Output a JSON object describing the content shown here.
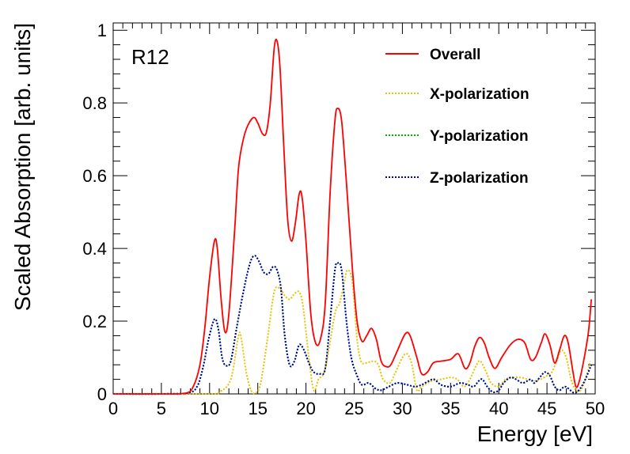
{
  "chart_data": {
    "type": "line",
    "annotation": "R12",
    "xlabel": "Energy [eV]",
    "ylabel": "Scaled Absorption [arb. units]",
    "xlim": [
      0,
      50
    ],
    "ylim": [
      0,
      1.02
    ],
    "xticks": [
      0,
      5,
      10,
      15,
      20,
      25,
      30,
      35,
      40,
      45,
      50
    ],
    "yticks": [
      0,
      0.2,
      0.4,
      0.6,
      0.8,
      1
    ],
    "ytick_labels": [
      "0",
      "0.2",
      "0.4",
      "0.6",
      "0.8",
      "1"
    ],
    "grid": false,
    "legend_position": "top-right",
    "series": [
      {
        "name": "Overall",
        "color": "#ff0000",
        "dash": "solid",
        "points": [
          [
            0,
            0
          ],
          [
            5,
            0
          ],
          [
            7.5,
            0.002
          ],
          [
            8.3,
            0.02
          ],
          [
            9,
            0.08
          ],
          [
            9.5,
            0.18
          ],
          [
            10,
            0.32
          ],
          [
            10.5,
            0.42
          ],
          [
            10.8,
            0.4
          ],
          [
            11.2,
            0.26
          ],
          [
            11.6,
            0.17
          ],
          [
            12,
            0.22
          ],
          [
            12.6,
            0.45
          ],
          [
            13,
            0.62
          ],
          [
            13.5,
            0.7
          ],
          [
            14,
            0.74
          ],
          [
            14.6,
            0.76
          ],
          [
            15,
            0.745
          ],
          [
            15.5,
            0.715
          ],
          [
            15.9,
            0.72
          ],
          [
            16.3,
            0.8
          ],
          [
            16.7,
            0.95
          ],
          [
            17,
            0.97
          ],
          [
            17.3,
            0.9
          ],
          [
            17.7,
            0.68
          ],
          [
            18.1,
            0.48
          ],
          [
            18.5,
            0.42
          ],
          [
            18.9,
            0.47
          ],
          [
            19.3,
            0.55
          ],
          [
            19.6,
            0.54
          ],
          [
            20,
            0.42
          ],
          [
            20.5,
            0.22
          ],
          [
            21,
            0.14
          ],
          [
            21.5,
            0.15
          ],
          [
            22,
            0.25
          ],
          [
            22.5,
            0.55
          ],
          [
            23,
            0.75
          ],
          [
            23.3,
            0.785
          ],
          [
            23.7,
            0.75
          ],
          [
            24.2,
            0.58
          ],
          [
            24.8,
            0.35
          ],
          [
            25.3,
            0.2
          ],
          [
            25.8,
            0.145
          ],
          [
            26.3,
            0.16
          ],
          [
            26.8,
            0.18
          ],
          [
            27.3,
            0.15
          ],
          [
            27.8,
            0.09
          ],
          [
            28.3,
            0.075
          ],
          [
            28.8,
            0.08
          ],
          [
            29.5,
            0.12
          ],
          [
            30.3,
            0.165
          ],
          [
            30.8,
            0.16
          ],
          [
            31.5,
            0.1
          ],
          [
            32,
            0.055
          ],
          [
            32.6,
            0.06
          ],
          [
            33.2,
            0.085
          ],
          [
            34,
            0.09
          ],
          [
            35,
            0.095
          ],
          [
            35.8,
            0.11
          ],
          [
            36.5,
            0.07
          ],
          [
            37,
            0.085
          ],
          [
            37.5,
            0.13
          ],
          [
            38,
            0.155
          ],
          [
            38.5,
            0.14
          ],
          [
            39,
            0.1
          ],
          [
            39.6,
            0.07
          ],
          [
            40.3,
            0.1
          ],
          [
            41.2,
            0.135
          ],
          [
            42,
            0.15
          ],
          [
            42.7,
            0.14
          ],
          [
            43.3,
            0.095
          ],
          [
            43.8,
            0.1
          ],
          [
            44.4,
            0.14
          ],
          [
            44.8,
            0.165
          ],
          [
            45.3,
            0.135
          ],
          [
            45.8,
            0.085
          ],
          [
            46.3,
            0.12
          ],
          [
            46.8,
            0.16
          ],
          [
            47.2,
            0.14
          ],
          [
            47.7,
            0.06
          ],
          [
            48,
            0.02
          ],
          [
            48.3,
            0.03
          ],
          [
            48.8,
            0.09
          ],
          [
            49.3,
            0.17
          ],
          [
            49.6,
            0.26
          ]
        ]
      },
      {
        "name": "X-polarization",
        "color": "#e6c200",
        "dash": "dotted",
        "points": [
          [
            0,
            0
          ],
          [
            10,
            0
          ],
          [
            11,
            0.005
          ],
          [
            12.2,
            0.04
          ],
          [
            13,
            0.16
          ],
          [
            13.3,
            0.15
          ],
          [
            13.8,
            0.06
          ],
          [
            14.3,
            0.01
          ],
          [
            14.8,
            0.003
          ],
          [
            15.3,
            0.03
          ],
          [
            16,
            0.15
          ],
          [
            16.7,
            0.28
          ],
          [
            17.3,
            0.29
          ],
          [
            17.8,
            0.27
          ],
          [
            18.3,
            0.26
          ],
          [
            18.8,
            0.275
          ],
          [
            19.3,
            0.28
          ],
          [
            19.7,
            0.24
          ],
          [
            20.3,
            0.1
          ],
          [
            20.8,
            0.01
          ],
          [
            21.3,
            0.04
          ],
          [
            22,
            0.07
          ],
          [
            23,
            0.22
          ],
          [
            23.5,
            0.25
          ],
          [
            24,
            0.31
          ],
          [
            24.3,
            0.34
          ],
          [
            24.8,
            0.31
          ],
          [
            25.3,
            0.15
          ],
          [
            25.7,
            0.09
          ],
          [
            26.2,
            0.085
          ],
          [
            27,
            0.09
          ],
          [
            27.5,
            0.08
          ],
          [
            28,
            0.04
          ],
          [
            28.7,
            0.03
          ],
          [
            29.3,
            0.06
          ],
          [
            30,
            0.1
          ],
          [
            30.5,
            0.11
          ],
          [
            31,
            0.08
          ],
          [
            31.5,
            0.01
          ],
          [
            32,
            0.02
          ],
          [
            33,
            0.035
          ],
          [
            34,
            0.04
          ],
          [
            35,
            0.045
          ],
          [
            35.7,
            0.04
          ],
          [
            36.4,
            0.02
          ],
          [
            37,
            0.04
          ],
          [
            37.7,
            0.08
          ],
          [
            38.1,
            0.09
          ],
          [
            38.7,
            0.06
          ],
          [
            39.2,
            0.03
          ],
          [
            40,
            0.02
          ],
          [
            40.7,
            0.04
          ],
          [
            41.5,
            0.045
          ],
          [
            42.3,
            0.045
          ],
          [
            43,
            0.04
          ],
          [
            43.5,
            0.035
          ],
          [
            44.3,
            0.04
          ],
          [
            45,
            0.05
          ],
          [
            45.5,
            0.06
          ],
          [
            46,
            0.09
          ],
          [
            46.5,
            0.12
          ],
          [
            47,
            0.1
          ],
          [
            47.5,
            0.04
          ],
          [
            48,
            0.01
          ],
          [
            48.5,
            0.01
          ],
          [
            49,
            0.04
          ],
          [
            49.5,
            0.09
          ]
        ]
      },
      {
        "name": "Y-polarization",
        "color": "#00b000",
        "dash": "dotted",
        "points": [
          [
            0,
            0
          ],
          [
            5,
            0
          ],
          [
            7.8,
            0.003
          ],
          [
            8.7,
            0.02
          ],
          [
            9.3,
            0.07
          ],
          [
            9.9,
            0.15
          ],
          [
            10.5,
            0.205
          ],
          [
            10.9,
            0.18
          ],
          [
            11.3,
            0.1
          ],
          [
            11.7,
            0.078
          ],
          [
            12.2,
            0.09
          ],
          [
            12.8,
            0.18
          ],
          [
            13.5,
            0.28
          ],
          [
            14.2,
            0.36
          ],
          [
            14.7,
            0.38
          ],
          [
            15.2,
            0.36
          ],
          [
            15.6,
            0.335
          ],
          [
            16.1,
            0.33
          ],
          [
            16.6,
            0.35
          ],
          [
            17,
            0.34
          ],
          [
            17.4,
            0.29
          ],
          [
            17.8,
            0.16
          ],
          [
            18.3,
            0.08
          ],
          [
            18.8,
            0.09
          ],
          [
            19.3,
            0.135
          ],
          [
            19.8,
            0.12
          ],
          [
            20.3,
            0.085
          ],
          [
            20.8,
            0.06
          ],
          [
            21.5,
            0.055
          ],
          [
            22,
            0.07
          ],
          [
            22.5,
            0.2
          ],
          [
            23,
            0.34
          ],
          [
            23.3,
            0.36
          ],
          [
            23.7,
            0.34
          ],
          [
            24.2,
            0.2
          ],
          [
            24.7,
            0.1
          ],
          [
            25.3,
            0.05
          ],
          [
            25.8,
            0.025
          ],
          [
            26.5,
            0.03
          ],
          [
            27.2,
            0.015
          ],
          [
            27.8,
            0.01
          ],
          [
            28.6,
            0.02
          ],
          [
            29.5,
            0.03
          ],
          [
            30.5,
            0.025
          ],
          [
            31.3,
            0.02
          ],
          [
            32,
            0.025
          ],
          [
            32.7,
            0.035
          ],
          [
            33.3,
            0.04
          ],
          [
            34,
            0.025
          ],
          [
            35,
            0.02
          ],
          [
            36,
            0.03
          ],
          [
            36.8,
            0.025
          ],
          [
            37.4,
            0.02
          ],
          [
            37.9,
            0.035
          ],
          [
            38.3,
            0.04
          ],
          [
            38.8,
            0.02
          ],
          [
            39.4,
            0.005
          ],
          [
            40,
            0.01
          ],
          [
            40.5,
            0.03
          ],
          [
            41.2,
            0.045
          ],
          [
            41.8,
            0.04
          ],
          [
            42.5,
            0.03
          ],
          [
            43.3,
            0.04
          ],
          [
            43.7,
            0.03
          ],
          [
            44.4,
            0.05
          ],
          [
            44.8,
            0.06
          ],
          [
            45.3,
            0.05
          ],
          [
            45.8,
            0.02
          ],
          [
            46.3,
            0.01
          ],
          [
            46.8,
            0.02
          ],
          [
            47.2,
            0.015
          ],
          [
            47.8,
            0.003
          ],
          [
            48.3,
            0.01
          ],
          [
            48.8,
            0.03
          ],
          [
            49.3,
            0.06
          ],
          [
            49.6,
            0.08
          ]
        ]
      },
      {
        "name": "Z-polarization",
        "color": "#0000b0",
        "dash": "dotted",
        "points": [
          [
            0,
            0
          ],
          [
            5,
            0
          ],
          [
            7.8,
            0.003
          ],
          [
            8.7,
            0.02
          ],
          [
            9.3,
            0.07
          ],
          [
            9.9,
            0.15
          ],
          [
            10.5,
            0.205
          ],
          [
            10.9,
            0.18
          ],
          [
            11.3,
            0.1
          ],
          [
            11.7,
            0.078
          ],
          [
            12.2,
            0.09
          ],
          [
            12.8,
            0.18
          ],
          [
            13.5,
            0.28
          ],
          [
            14.2,
            0.36
          ],
          [
            14.7,
            0.38
          ],
          [
            15.2,
            0.36
          ],
          [
            15.6,
            0.335
          ],
          [
            16.1,
            0.33
          ],
          [
            16.6,
            0.35
          ],
          [
            17,
            0.34
          ],
          [
            17.4,
            0.29
          ],
          [
            17.8,
            0.16
          ],
          [
            18.3,
            0.08
          ],
          [
            18.8,
            0.09
          ],
          [
            19.3,
            0.135
          ],
          [
            19.8,
            0.12
          ],
          [
            20.3,
            0.085
          ],
          [
            20.8,
            0.06
          ],
          [
            21.5,
            0.055
          ],
          [
            22,
            0.07
          ],
          [
            22.5,
            0.2
          ],
          [
            23,
            0.34
          ],
          [
            23.3,
            0.36
          ],
          [
            23.7,
            0.34
          ],
          [
            24.2,
            0.2
          ],
          [
            24.7,
            0.1
          ],
          [
            25.3,
            0.05
          ],
          [
            25.8,
            0.025
          ],
          [
            26.5,
            0.03
          ],
          [
            27.2,
            0.015
          ],
          [
            27.8,
            0.01
          ],
          [
            28.6,
            0.02
          ],
          [
            29.5,
            0.03
          ],
          [
            30.5,
            0.025
          ],
          [
            31.3,
            0.02
          ],
          [
            32,
            0.025
          ],
          [
            32.7,
            0.035
          ],
          [
            33.3,
            0.04
          ],
          [
            34,
            0.025
          ],
          [
            35,
            0.02
          ],
          [
            36,
            0.03
          ],
          [
            36.8,
            0.025
          ],
          [
            37.4,
            0.02
          ],
          [
            37.9,
            0.035
          ],
          [
            38.3,
            0.04
          ],
          [
            38.8,
            0.02
          ],
          [
            39.4,
            0.005
          ],
          [
            40,
            0.01
          ],
          [
            40.5,
            0.03
          ],
          [
            41.2,
            0.045
          ],
          [
            41.8,
            0.04
          ],
          [
            42.5,
            0.03
          ],
          [
            43.3,
            0.04
          ],
          [
            43.7,
            0.03
          ],
          [
            44.4,
            0.05
          ],
          [
            44.8,
            0.06
          ],
          [
            45.3,
            0.05
          ],
          [
            45.8,
            0.02
          ],
          [
            46.3,
            0.01
          ],
          [
            46.8,
            0.02
          ],
          [
            47.2,
            0.015
          ],
          [
            47.8,
            0.003
          ],
          [
            48.3,
            0.01
          ],
          [
            48.8,
            0.03
          ],
          [
            49.3,
            0.06
          ],
          [
            49.6,
            0.08
          ]
        ]
      }
    ]
  }
}
